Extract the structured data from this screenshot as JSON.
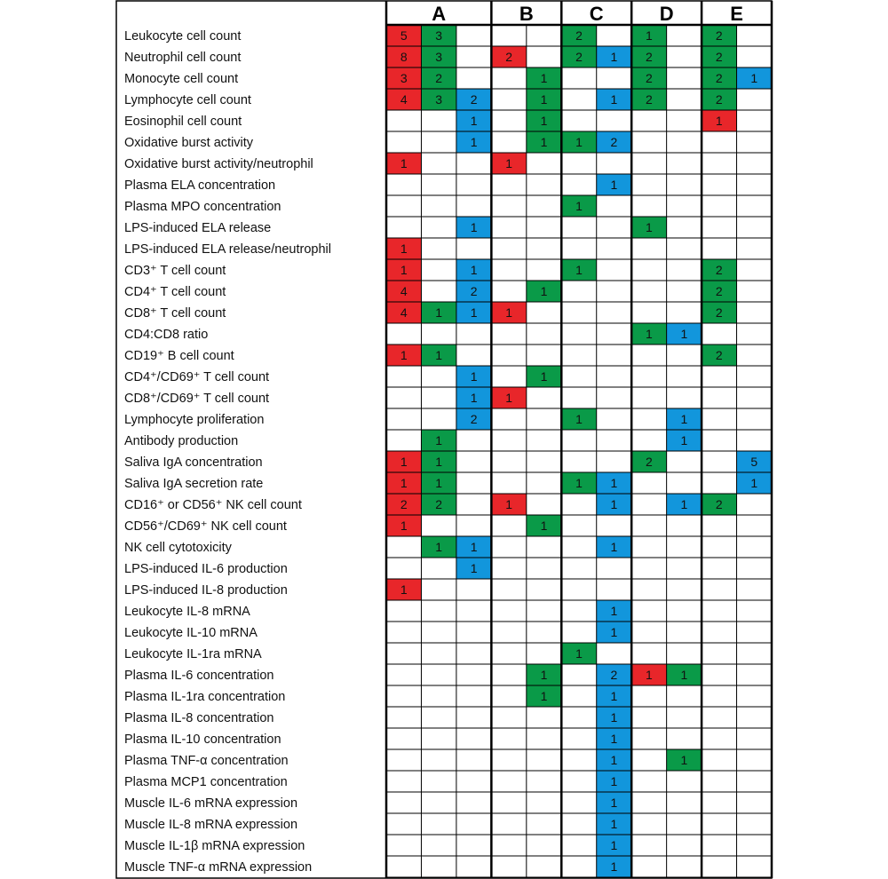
{
  "chart_data": {
    "type": "heatmap",
    "groups": [
      "A",
      "B",
      "C",
      "D",
      "E"
    ],
    "columns_per_group": [
      3,
      2,
      2,
      2,
      2
    ],
    "colors": {
      "red": "#e8262a",
      "green": "#0a9a48",
      "blue": "#1296dc"
    },
    "rows": [
      {
        "label": "Leukocyte cell count",
        "cells": [
          [
            "red",
            5
          ],
          [
            "green",
            3
          ],
          null,
          null,
          null,
          [
            "green",
            2
          ],
          null,
          [
            "green",
            1
          ],
          null,
          [
            "green",
            2
          ],
          null
        ]
      },
      {
        "label": "Neutrophil cell count",
        "cells": [
          [
            "red",
            8
          ],
          [
            "green",
            3
          ],
          null,
          [
            "red",
            2
          ],
          null,
          [
            "green",
            2
          ],
          [
            "blue",
            1
          ],
          [
            "green",
            2
          ],
          null,
          [
            "green",
            2
          ],
          null
        ]
      },
      {
        "label": "Monocyte cell count",
        "cells": [
          [
            "red",
            3
          ],
          [
            "green",
            2
          ],
          null,
          null,
          [
            "green",
            1
          ],
          null,
          null,
          [
            "green",
            2
          ],
          null,
          [
            "green",
            2
          ],
          [
            "blue",
            1
          ]
        ]
      },
      {
        "label": "Lymphocyte cell count",
        "cells": [
          [
            "red",
            4
          ],
          [
            "green",
            3
          ],
          [
            "blue",
            2
          ],
          null,
          [
            "green",
            1
          ],
          null,
          [
            "blue",
            1
          ],
          [
            "green",
            2
          ],
          null,
          [
            "green",
            2
          ],
          null
        ]
      },
      {
        "label": "Eosinophil cell count",
        "cells": [
          null,
          null,
          [
            "blue",
            1
          ],
          null,
          [
            "green",
            1
          ],
          null,
          null,
          null,
          null,
          [
            "red",
            1
          ],
          null
        ]
      },
      {
        "label": "Oxidative burst activity",
        "cells": [
          null,
          null,
          [
            "blue",
            1
          ],
          null,
          [
            "green",
            1
          ],
          [
            "green",
            1
          ],
          [
            "blue",
            2
          ],
          null,
          null,
          null,
          null
        ]
      },
      {
        "label": "Oxidative burst activity/neutrophil",
        "cells": [
          [
            "red",
            1
          ],
          null,
          null,
          [
            "red",
            1
          ],
          null,
          null,
          null,
          null,
          null,
          null,
          null
        ]
      },
      {
        "label": "Plasma ELA concentration",
        "cells": [
          null,
          null,
          null,
          null,
          null,
          null,
          [
            "blue",
            1
          ],
          null,
          null,
          null,
          null
        ]
      },
      {
        "label": "Plasma MPO concentration",
        "cells": [
          null,
          null,
          null,
          null,
          null,
          [
            "green",
            1
          ],
          null,
          null,
          null,
          null,
          null
        ]
      },
      {
        "label": "LPS-induced ELA release",
        "cells": [
          null,
          null,
          [
            "blue",
            1
          ],
          null,
          null,
          null,
          null,
          [
            "green",
            1
          ],
          null,
          null,
          null
        ]
      },
      {
        "label": "LPS-induced ELA release/neutrophil",
        "cells": [
          [
            "red",
            1
          ],
          null,
          null,
          null,
          null,
          null,
          null,
          null,
          null,
          null,
          null
        ]
      },
      {
        "label": "CD3⁺ T cell count",
        "cells": [
          [
            "red",
            1
          ],
          null,
          [
            "blue",
            1
          ],
          null,
          null,
          [
            "green",
            1
          ],
          null,
          null,
          null,
          [
            "green",
            2
          ],
          null
        ]
      },
      {
        "label": "CD4⁺ T cell count",
        "cells": [
          [
            "red",
            4
          ],
          null,
          [
            "blue",
            2
          ],
          null,
          [
            "green",
            1
          ],
          null,
          null,
          null,
          null,
          [
            "green",
            2
          ],
          null
        ]
      },
      {
        "label": "CD8⁺ T cell count",
        "cells": [
          [
            "red",
            4
          ],
          [
            "green",
            1
          ],
          [
            "blue",
            1
          ],
          [
            "red",
            1
          ],
          null,
          null,
          null,
          null,
          null,
          [
            "green",
            2
          ],
          null
        ]
      },
      {
        "label": "CD4:CD8 ratio",
        "cells": [
          null,
          null,
          null,
          null,
          null,
          null,
          null,
          [
            "green",
            1
          ],
          [
            "blue",
            1
          ],
          null,
          null
        ]
      },
      {
        "label": "CD19⁺ B cell count",
        "cells": [
          [
            "red",
            1
          ],
          [
            "green",
            1
          ],
          null,
          null,
          null,
          null,
          null,
          null,
          null,
          [
            "green",
            2
          ],
          null
        ]
      },
      {
        "label": "CD4⁺/CD69⁺ T cell count",
        "cells": [
          null,
          null,
          [
            "blue",
            1
          ],
          null,
          [
            "green",
            1
          ],
          null,
          null,
          null,
          null,
          null,
          null
        ]
      },
      {
        "label": "CD8⁺/CD69⁺ T cell count",
        "cells": [
          null,
          null,
          [
            "blue",
            1
          ],
          [
            "red",
            1
          ],
          null,
          null,
          null,
          null,
          null,
          null,
          null
        ]
      },
      {
        "label": "Lymphocyte proliferation",
        "cells": [
          null,
          null,
          [
            "blue",
            2
          ],
          null,
          null,
          [
            "green",
            1
          ],
          null,
          null,
          [
            "blue",
            1
          ],
          null,
          null
        ]
      },
      {
        "label": "Antibody production",
        "cells": [
          null,
          [
            "green",
            1
          ],
          null,
          null,
          null,
          null,
          null,
          null,
          [
            "blue",
            1
          ],
          null,
          null
        ]
      },
      {
        "label": "Saliva IgA concentration",
        "cells": [
          [
            "red",
            1
          ],
          [
            "green",
            1
          ],
          null,
          null,
          null,
          null,
          null,
          [
            "green",
            2
          ],
          null,
          null,
          [
            "blue",
            5
          ]
        ]
      },
      {
        "label": "Saliva IgA secretion rate",
        "cells": [
          [
            "red",
            1
          ],
          [
            "green",
            1
          ],
          null,
          null,
          null,
          [
            "green",
            1
          ],
          [
            "blue",
            1
          ],
          null,
          null,
          null,
          [
            "blue",
            1
          ]
        ]
      },
      {
        "label": "CD16⁺ or CD56⁺ NK cell count",
        "cells": [
          [
            "red",
            2
          ],
          [
            "green",
            2
          ],
          null,
          [
            "red",
            1
          ],
          null,
          null,
          [
            "blue",
            1
          ],
          null,
          [
            "blue",
            1
          ],
          [
            "green",
            2
          ],
          null
        ]
      },
      {
        "label": "CD56⁺/CD69⁺ NK cell count",
        "cells": [
          [
            "red",
            1
          ],
          null,
          null,
          null,
          [
            "green",
            1
          ],
          null,
          null,
          null,
          null,
          null,
          null
        ]
      },
      {
        "label": "NK cell cytotoxicity",
        "cells": [
          null,
          [
            "green",
            1
          ],
          [
            "blue",
            1
          ],
          null,
          null,
          null,
          [
            "blue",
            1
          ],
          null,
          null,
          null,
          null
        ]
      },
      {
        "label": "LPS-induced IL-6 production",
        "cells": [
          null,
          null,
          [
            "blue",
            1
          ],
          null,
          null,
          null,
          null,
          null,
          null,
          null,
          null
        ]
      },
      {
        "label": "LPS-induced IL-8 production",
        "cells": [
          [
            "red",
            1
          ],
          null,
          null,
          null,
          null,
          null,
          null,
          null,
          null,
          null,
          null
        ]
      },
      {
        "label": "Leukocyte IL-8 mRNA",
        "cells": [
          null,
          null,
          null,
          null,
          null,
          null,
          [
            "blue",
            1
          ],
          null,
          null,
          null,
          null
        ]
      },
      {
        "label": "Leukocyte IL-10 mRNA",
        "cells": [
          null,
          null,
          null,
          null,
          null,
          null,
          [
            "blue",
            1
          ],
          null,
          null,
          null,
          null
        ]
      },
      {
        "label": "Leukocyte IL-1ra mRNA",
        "cells": [
          null,
          null,
          null,
          null,
          null,
          [
            "green",
            1
          ],
          null,
          null,
          null,
          null,
          null
        ]
      },
      {
        "label": "Plasma IL-6 concentration",
        "cells": [
          null,
          null,
          null,
          null,
          [
            "green",
            1
          ],
          null,
          [
            "blue",
            2
          ],
          [
            "red",
            1
          ],
          [
            "green",
            1
          ],
          null,
          null
        ]
      },
      {
        "label": "Plasma IL-1ra concentration",
        "cells": [
          null,
          null,
          null,
          null,
          [
            "green",
            1
          ],
          null,
          [
            "blue",
            1
          ],
          null,
          null,
          null,
          null
        ]
      },
      {
        "label": "Plasma IL-8 concentration",
        "cells": [
          null,
          null,
          null,
          null,
          null,
          null,
          [
            "blue",
            1
          ],
          null,
          null,
          null,
          null
        ]
      },
      {
        "label": "Plasma IL-10 concentration",
        "cells": [
          null,
          null,
          null,
          null,
          null,
          null,
          [
            "blue",
            1
          ],
          null,
          null,
          null,
          null
        ]
      },
      {
        "label": "Plasma TNF-α concentration",
        "cells": [
          null,
          null,
          null,
          null,
          null,
          null,
          [
            "blue",
            1
          ],
          null,
          [
            "green",
            1
          ],
          null,
          null
        ]
      },
      {
        "label": "Plasma MCP1 concentration",
        "cells": [
          null,
          null,
          null,
          null,
          null,
          null,
          [
            "blue",
            1
          ],
          null,
          null,
          null,
          null
        ]
      },
      {
        "label": "Muscle IL-6 mRNA expression",
        "cells": [
          null,
          null,
          null,
          null,
          null,
          null,
          [
            "blue",
            1
          ],
          null,
          null,
          null,
          null
        ]
      },
      {
        "label": "Muscle IL-8 mRNA expression",
        "cells": [
          null,
          null,
          null,
          null,
          null,
          null,
          [
            "blue",
            1
          ],
          null,
          null,
          null,
          null
        ]
      },
      {
        "label": "Muscle IL-1β mRNA expression",
        "cells": [
          null,
          null,
          null,
          null,
          null,
          null,
          [
            "blue",
            1
          ],
          null,
          null,
          null,
          null
        ]
      },
      {
        "label": "Muscle TNF-α mRNA expression",
        "cells": [
          null,
          null,
          null,
          null,
          null,
          null,
          [
            "blue",
            1
          ],
          null,
          null,
          null,
          null
        ]
      }
    ]
  }
}
